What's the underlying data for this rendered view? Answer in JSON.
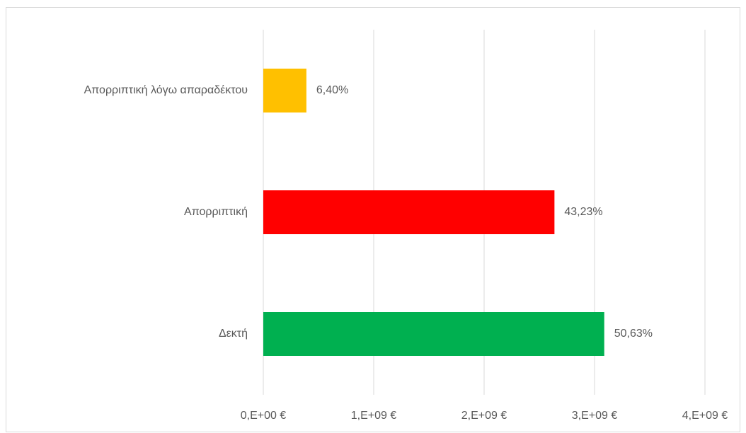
{
  "chart_data": {
    "type": "bar",
    "orientation": "horizontal",
    "categories": [
      "Απορριπτική λόγω απαραδέκτου",
      "Απορριπτική",
      "Δεκτή"
    ],
    "values": [
      390400000,
      2637000000,
      3088000000
    ],
    "value_labels": [
      "6,40%",
      "43,23%",
      "50,63%"
    ],
    "colors": [
      "#ffc000",
      "#ff0000",
      "#00b050"
    ],
    "xlim": [
      0,
      4000000000
    ],
    "xticks": [
      {
        "value": 0,
        "label": "0,E+00 €"
      },
      {
        "value": 1000000000,
        "label": "1,E+09 €"
      },
      {
        "value": 2000000000,
        "label": "2,E+09 €"
      },
      {
        "value": 3000000000,
        "label": "3,E+09 €"
      },
      {
        "value": 4000000000,
        "label": "4,E+09 €"
      }
    ],
    "grid": true
  }
}
